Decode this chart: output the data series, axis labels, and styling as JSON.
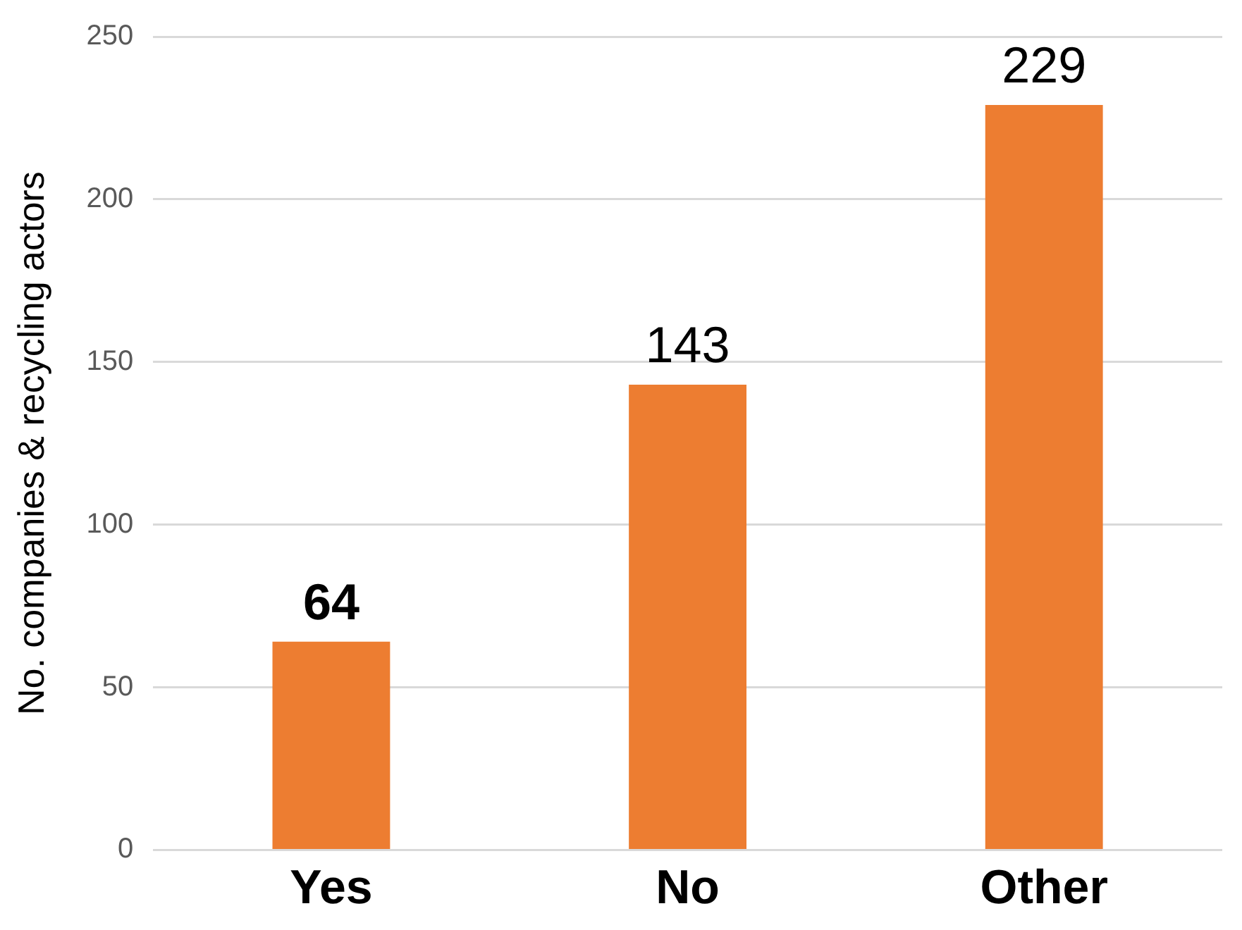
{
  "chart_data": {
    "type": "bar",
    "ylabel": "No. companies & recycling actors",
    "categories": [
      "Yes",
      "No",
      "Other"
    ],
    "values": [
      64,
      143,
      229
    ],
    "color": "#ed7d31",
    "ylim": [
      0,
      250
    ],
    "yticks": [
      0,
      50,
      100,
      150,
      200,
      250
    ],
    "grid": "y",
    "data_labels": true,
    "legend": false
  }
}
